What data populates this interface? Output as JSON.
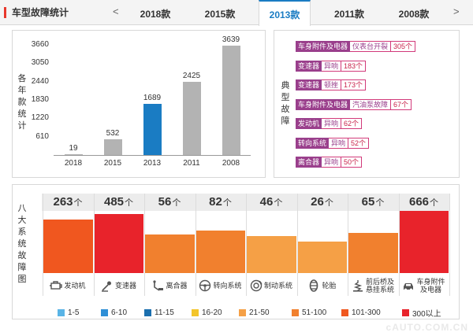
{
  "header": {
    "title": "车型故障统计",
    "prev_arrow": "<",
    "next_arrow": ">",
    "tabs": [
      {
        "label": "2018款",
        "active": false
      },
      {
        "label": "2015款",
        "active": false
      },
      {
        "label": "2013款",
        "active": true
      },
      {
        "label": "2011款",
        "active": false
      },
      {
        "label": "2008款",
        "active": false
      }
    ]
  },
  "colors": {
    "brand_red": "#e8382c",
    "tab_active": "#1a7cc3",
    "bar_gray": "#b3b3b3",
    "bar_highlight": "#1a7cc3",
    "tag_purple": "#9a3f8c"
  },
  "chart_data": [
    {
      "type": "bar",
      "ylabel": "各年款统计",
      "categories": [
        "2018",
        "2015",
        "2013",
        "2011",
        "2008"
      ],
      "values": [
        19,
        532,
        1689,
        2425,
        3639
      ],
      "highlight_index": 2,
      "yticks": [
        610,
        1220,
        1830,
        2440,
        3050,
        3660
      ],
      "ylim": [
        0,
        3660
      ]
    },
    {
      "type": "bar",
      "ylabel": "八大系统故障图",
      "unit": "个",
      "categories": [
        "发动机",
        "变速器",
        "离合器",
        "转向系统",
        "制动系统",
        "轮胎",
        "前后桥及悬挂系统",
        "车身附件及电器"
      ],
      "values": [
        263,
        485,
        56,
        82,
        46,
        26,
        65,
        666
      ],
      "legend": [
        {
          "label": "1-5",
          "color": "#5ab4e6"
        },
        {
          "label": "6-10",
          "color": "#2f8fd6"
        },
        {
          "label": "11-15",
          "color": "#1b6fae"
        },
        {
          "label": "16-20",
          "color": "#f3c52a"
        },
        {
          "label": "21-50",
          "color": "#f5a046"
        },
        {
          "label": "51-100",
          "color": "#f1802e"
        },
        {
          "label": "101-300",
          "color": "#f0571f"
        },
        {
          "label": "300以上",
          "color": "#e8232b"
        }
      ]
    }
  ],
  "typical_faults": {
    "label": "典型故障",
    "items": [
      {
        "category": "车身附件及电器",
        "issue": "仪表台开裂",
        "count": "305个"
      },
      {
        "category": "变速器",
        "issue": "异响",
        "count": "183个"
      },
      {
        "category": "变速器",
        "issue": "顿挫",
        "count": "173个"
      },
      {
        "category": "车身附件及电器",
        "issue": "汽油泵故障",
        "count": "67个"
      },
      {
        "category": "发动机",
        "issue": "异响",
        "count": "62个"
      },
      {
        "category": "转向系统",
        "issue": "异响",
        "count": "52个"
      },
      {
        "category": "离合器",
        "issue": "异响",
        "count": "50个"
      }
    ]
  },
  "systems": [
    {
      "label": "发动机",
      "label2": "",
      "icon": "engine-icon",
      "count": "263",
      "fill": "#f0571f"
    },
    {
      "label": "变速器",
      "label2": "",
      "icon": "gear-shift-icon",
      "count": "485",
      "fill": "#e8232b"
    },
    {
      "label": "离合器",
      "label2": "",
      "icon": "clutch-pedal-icon",
      "count": "56",
      "fill": "#f1802e"
    },
    {
      "label": "转向系统",
      "label2": "",
      "icon": "steering-wheel-icon",
      "count": "82",
      "fill": "#f1802e"
    },
    {
      "label": "制动系统",
      "label2": "",
      "icon": "brake-disc-icon",
      "count": "46",
      "fill": "#f5a046"
    },
    {
      "label": "轮胎",
      "label2": "",
      "icon": "tire-icon",
      "count": "26",
      "fill": "#f5a046"
    },
    {
      "label": "前后桥及",
      "label2": "悬挂系统",
      "icon": "suspension-icon",
      "count": "65",
      "fill": "#f1802e"
    },
    {
      "label": "车身附件",
      "label2": "及电器",
      "icon": "car-body-icon",
      "count": "666",
      "fill": "#e8232b"
    }
  ],
  "system_unit": "个",
  "watermark": "cAUTO.COM.CN"
}
